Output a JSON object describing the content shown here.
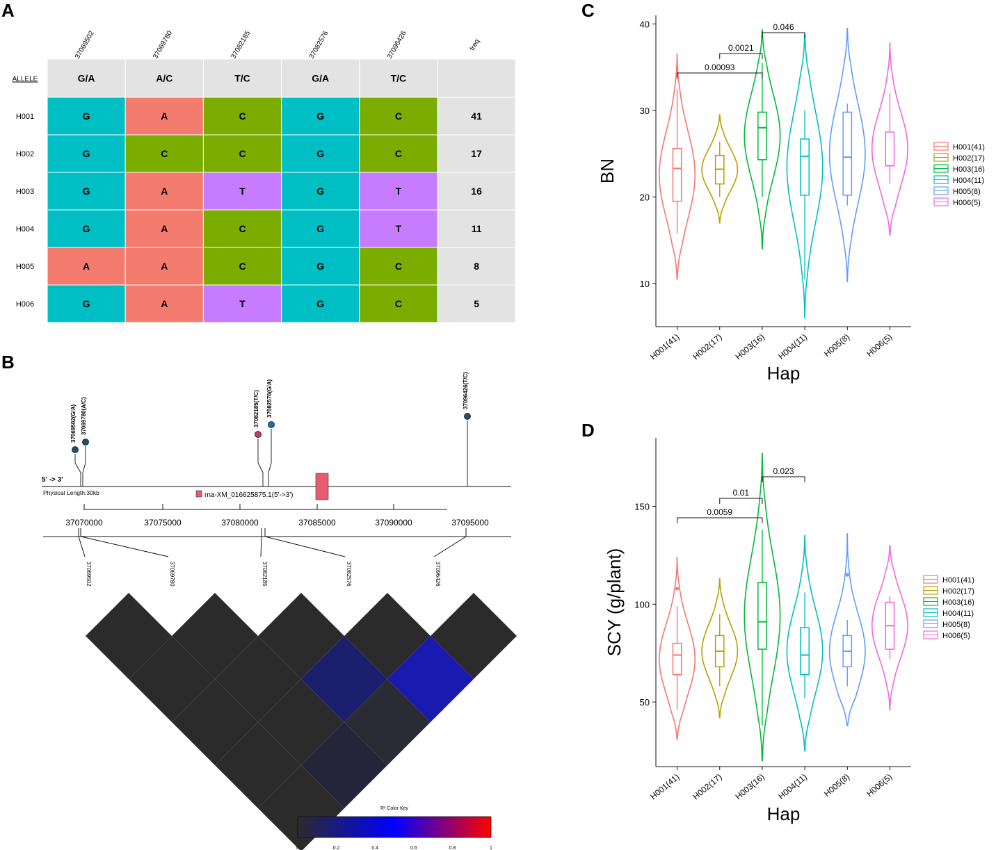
{
  "panels": {
    "a": "A",
    "b": "B",
    "c": "C",
    "d": "D"
  },
  "hap_table": {
    "column_headers": [
      "37069502",
      "37069780",
      "37082185",
      "37082576",
      "37096426",
      "freq"
    ],
    "allele_label": "ALLELE",
    "alleles": [
      "G/A",
      "A/C",
      "T/C",
      "G/A",
      "T/C",
      ""
    ],
    "rows": [
      {
        "name": "H001",
        "bases": [
          "G",
          "A",
          "C",
          "G",
          "C"
        ],
        "freq": "41"
      },
      {
        "name": "H002",
        "bases": [
          "G",
          "C",
          "C",
          "G",
          "C"
        ],
        "freq": "17"
      },
      {
        "name": "H003",
        "bases": [
          "G",
          "A",
          "T",
          "G",
          "T"
        ],
        "freq": "16"
      },
      {
        "name": "H004",
        "bases": [
          "G",
          "A",
          "C",
          "G",
          "T"
        ],
        "freq": "11"
      },
      {
        "name": "H005",
        "bases": [
          "A",
          "A",
          "C",
          "G",
          "C"
        ],
        "freq": "8"
      },
      {
        "name": "H006",
        "bases": [
          "G",
          "A",
          "T",
          "G",
          "C"
        ],
        "freq": "5"
      }
    ],
    "colors": {
      "A": "#f47c6e",
      "C": "#7aad00",
      "G": "#00bfc4",
      "T": "#c77cff",
      "header": "#e3e3e3"
    }
  },
  "gene_structure": {
    "strand": "5' -> 3'",
    "physical_length": "Physical Length:30kb",
    "gene_label": "rna-XM_016625875.1(5'->3')",
    "snp_labels": [
      "37069502(G/A)",
      "37069780(A/C)",
      "37082185(T/C)",
      "37082576(G/A)",
      "37096426(T/C)"
    ],
    "axis_ticks": [
      "37070000",
      "37075000",
      "37080000",
      "37085000",
      "37090000",
      "37095000"
    ],
    "ld_labels": [
      "37069502",
      "37069780",
      "37082185",
      "37082576",
      "37096426"
    ],
    "color_key_title": "R² Color Key",
    "color_key_ticks": [
      "0",
      "0.2",
      "0.4",
      "0.6",
      "0.8",
      "1"
    ]
  },
  "chart_data": [
    {
      "type": "violin",
      "panel": "C",
      "title": "",
      "xlabel": "Hap",
      "ylabel": "BN",
      "ylim": [
        5,
        41
      ],
      "yticks": [
        10,
        20,
        30,
        40
      ],
      "categories": [
        "H001(41)",
        "H002(17)",
        "H003(16)",
        "H004(11)",
        "H005(8)",
        "H006(5)"
      ],
      "legend": [
        "H001(41)",
        "H002(17)",
        "H003(16)",
        "H004(11)",
        "H005(8)",
        "H006(5)"
      ],
      "colors": [
        "#f8766d",
        "#b79f00",
        "#00ba38",
        "#00bfc4",
        "#619cff",
        "#f564e3"
      ],
      "series": [
        {
          "name": "H001(41)",
          "min": 10.5,
          "max": 36.5,
          "q1": 19.5,
          "median": 23.3,
          "q3": 25.6,
          "wlo": 15.8,
          "whi": 32.5
        },
        {
          "name": "H002(17)",
          "min": 17.0,
          "max": 29.5,
          "q1": 21.5,
          "median": 23.2,
          "q3": 24.8,
          "wlo": 20.0,
          "whi": 26.4
        },
        {
          "name": "H003(16)",
          "min": 14.0,
          "max": 39.3,
          "q1": 24.3,
          "median": 28.0,
          "q3": 29.8,
          "wlo": 20.0,
          "whi": 35.5
        },
        {
          "name": "H004(11)",
          "min": 6.0,
          "max": 38.8,
          "q1": 20.2,
          "median": 24.7,
          "q3": 26.7,
          "wlo": 10.5,
          "whi": 30.0
        },
        {
          "name": "H005(8)",
          "min": 10.2,
          "max": 39.5,
          "q1": 20.2,
          "median": 24.6,
          "q3": 29.8,
          "wlo": 19.0,
          "whi": 30.8
        },
        {
          "name": "H006(5)",
          "min": 15.6,
          "max": 37.8,
          "q1": 23.6,
          "median": 23.6,
          "q3": 27.5,
          "wlo": 21.5,
          "whi": 32.0
        }
      ],
      "comparisons": [
        {
          "from": "H001(41)",
          "to": "H003(16)",
          "p": "0.00093"
        },
        {
          "from": "H002(17)",
          "to": "H003(16)",
          "p": "0.0021"
        },
        {
          "from": "H003(16)",
          "to": "H004(11)",
          "p": "0.046"
        }
      ]
    },
    {
      "type": "violin",
      "panel": "D",
      "title": "",
      "xlabel": "Hap",
      "ylabel": "SCY (g/plant)",
      "ylim": [
        17,
        185
      ],
      "yticks": [
        50,
        100,
        150
      ],
      "categories": [
        "H001(41)",
        "H002(17)",
        "H003(16)",
        "H004(11)",
        "H005(8)",
        "H006(5)"
      ],
      "legend": [
        "H001(41)",
        "H002(17)",
        "H003(16)",
        "H004(11)",
        "H005(8)",
        "H006(5)"
      ],
      "colors": [
        "#f8766d",
        "#b79f00",
        "#00ba38",
        "#00bfc4",
        "#619cff",
        "#f564e3"
      ],
      "series": [
        {
          "name": "H001(41)",
          "min": 31,
          "max": 124,
          "q1": 64,
          "median": 74,
          "q3": 80,
          "wlo": 46,
          "whi": 99,
          "outlier": 108
        },
        {
          "name": "H002(17)",
          "min": 42,
          "max": 113,
          "q1": 68,
          "median": 76,
          "q3": 84,
          "wlo": 58,
          "whi": 95
        },
        {
          "name": "H003(16)",
          "min": 20,
          "max": 177,
          "q1": 77,
          "median": 91,
          "q3": 111,
          "wlo": 38,
          "whi": 138
        },
        {
          "name": "H004(11)",
          "min": 25,
          "max": 135,
          "q1": 64,
          "median": 74,
          "q3": 88,
          "wlo": 52,
          "whi": 106
        },
        {
          "name": "H005(8)",
          "min": 38,
          "max": 136,
          "q1": 68,
          "median": 76,
          "q3": 84,
          "wlo": 58,
          "whi": 92,
          "outlier": 115
        },
        {
          "name": "H006(5)",
          "min": 46,
          "max": 130,
          "q1": 77,
          "median": 89,
          "q3": 101,
          "wlo": 72,
          "whi": 104
        }
      ],
      "comparisons": [
        {
          "from": "H001(41)",
          "to": "H003(16)",
          "p": "0.0059"
        },
        {
          "from": "H002(17)",
          "to": "H003(16)",
          "p": "0.01"
        },
        {
          "from": "H003(16)",
          "to": "H004(11)",
          "p": "0.023"
        }
      ]
    }
  ]
}
